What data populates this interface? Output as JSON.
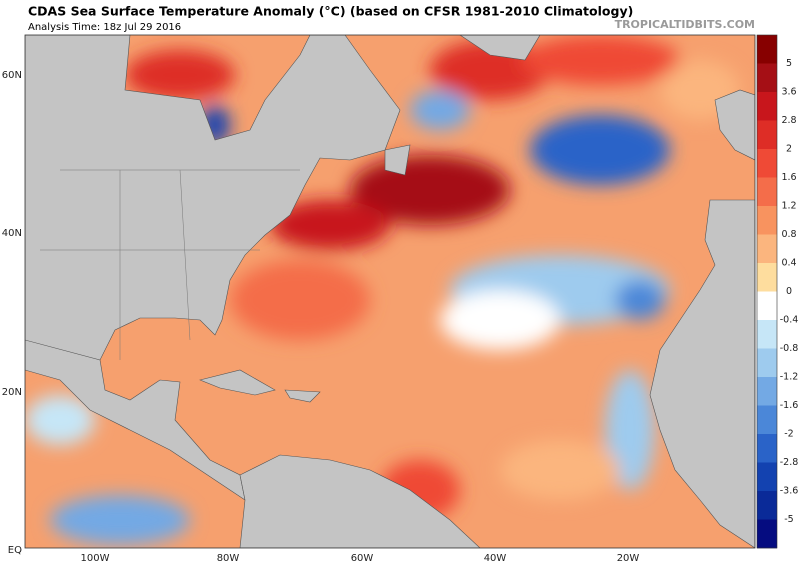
{
  "header": {
    "title": "CDAS Sea Surface Temperature Anomaly (°C) (based on CFSR 1981-2010 Climatology)",
    "subtitle": "Analysis Time: 18z Jul 29 2016",
    "source": "TROPICALTIDBITS.COM"
  },
  "map": {
    "lat_labels": [
      "60N",
      "40N",
      "20N",
      "EQ"
    ],
    "lon_labels": [
      "100W",
      "80W",
      "60W",
      "40W",
      "20W"
    ]
  },
  "colorbar": {
    "labels": [
      "5",
      "3.6",
      "2.8",
      "2",
      "1.6",
      "1.2",
      "0.8",
      "0.4",
      "0",
      "-0.4",
      "-0.8",
      "-1.2",
      "-1.6",
      "-2",
      "-2.8",
      "-3.6",
      "-5"
    ],
    "colors": [
      "#870000",
      "#a50f15",
      "#c8161c",
      "#de2d26",
      "#ef4a36",
      "#f46d4a",
      "#f8935f",
      "#fbb57e",
      "#fedd9e",
      "#ffffff",
      "#c6e6f7",
      "#9ecbee",
      "#73a9e4",
      "#4b87d8",
      "#2a63c8",
      "#1342b0",
      "#0a2a98",
      "#050c80"
    ]
  }
}
